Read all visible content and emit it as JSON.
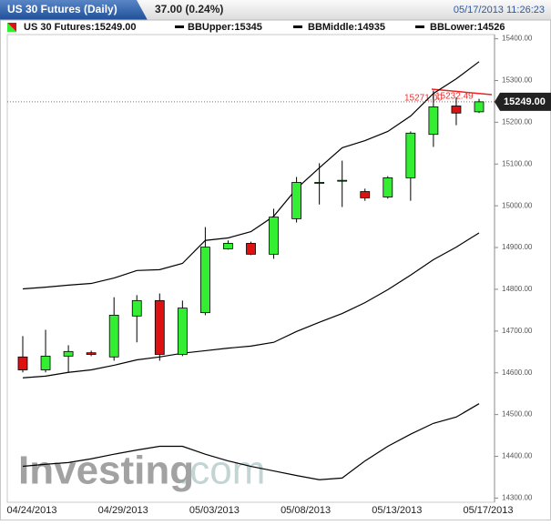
{
  "header": {
    "title": "US 30 Futures (Daily)",
    "change": "37.00 (0.24%)",
    "timestamp": "05/17/2013 11:26:23"
  },
  "chart_data": {
    "type": "candlestick",
    "legend": [
      "US 30 Futures:15249.00",
      "BBUpper:15345",
      "BBMiddle:14935",
      "BBLower:14526"
    ],
    "categories": [
      "04/24/2013",
      null,
      null,
      null,
      "04/29/2013",
      null,
      null,
      null,
      "05/03/2013",
      null,
      null,
      null,
      "05/08/2013",
      null,
      null,
      null,
      "05/13/2013",
      null,
      null,
      null,
      "05/17/2013"
    ],
    "open": [
      14638,
      14607,
      14640,
      14648,
      14638,
      14736,
      14773,
      14644,
      14744,
      14897,
      14910,
      14884,
      14969,
      15056,
      15060,
      15034,
      15021,
      15067,
      15171,
      15239,
      15225
    ],
    "high": [
      14688,
      14703,
      14666,
      14653,
      14781,
      14786,
      14790,
      14773,
      14949,
      14917,
      14914,
      14993,
      15069,
      15102,
      15108,
      15041,
      15071,
      15178,
      15276,
      15259,
      15256
    ],
    "low": [
      14601,
      14601,
      14601,
      14640,
      14629,
      14673,
      14629,
      14640,
      14738,
      14895,
      14882,
      14873,
      14960,
      15003,
      14997,
      15012,
      15017,
      15012,
      15141,
      15193,
      15222
    ],
    "close": [
      14607,
      14640,
      14651,
      14644,
      14738,
      14773,
      14644,
      14755,
      14901,
      14910,
      14884,
      14973,
      15056,
      15056,
      15061,
      15019,
      15067,
      15174,
      15237,
      15222,
      15249
    ],
    "up_color": "#33ee33",
    "down_color": "#dd1111",
    "series": [
      {
        "name": "BBUpper",
        "color": "#000000",
        "values": [
          14801,
          14805,
          14810,
          14814,
          14827,
          14845,
          14847,
          14862,
          14917,
          14923,
          14938,
          14975,
          15041,
          15091,
          15139,
          15156,
          15178,
          15215,
          15269,
          15304,
          15345
        ]
      },
      {
        "name": "BBMiddle",
        "color": "#000000",
        "values": [
          14588,
          14592,
          14601,
          14607,
          14618,
          14631,
          14638,
          14647,
          14653,
          14659,
          14664,
          14673,
          14699,
          14721,
          14742,
          14768,
          14799,
          14834,
          14871,
          14901,
          14935
        ]
      },
      {
        "name": "BBLower",
        "color": "#000000",
        "values": [
          14376,
          14381,
          14385,
          14394,
          14405,
          14415,
          14424,
          14424,
          14405,
          14389,
          14376,
          14365,
          14354,
          14344,
          14348,
          14389,
          14424,
          14453,
          14479,
          14494,
          14526
        ]
      }
    ],
    "last_price": {
      "value": 15249,
      "label": "15249.00"
    },
    "annotations": [
      "15271.00",
      "15232.49"
    ],
    "ylim": [
      14290,
      15410
    ],
    "yticks": [
      {
        "value": 14300,
        "label": "14300.00"
      },
      {
        "value": 14400,
        "label": "14400.00"
      },
      {
        "value": 14500,
        "label": "14500.00"
      },
      {
        "value": 14600,
        "label": "14600.00"
      },
      {
        "value": 14700,
        "label": "14700.00"
      },
      {
        "value": 14800,
        "label": "14800.00"
      },
      {
        "value": 14900,
        "label": "14900.00"
      },
      {
        "value": 15000,
        "label": "15000.00"
      },
      {
        "value": 15100,
        "label": "15100.00"
      },
      {
        "value": 15200,
        "label": "15200.00"
      },
      {
        "value": 15300,
        "label": "15300.00"
      },
      {
        "value": 15400,
        "label": "15400.00"
      }
    ],
    "grid": false,
    "watermark": [
      "Investing",
      ".com"
    ]
  }
}
